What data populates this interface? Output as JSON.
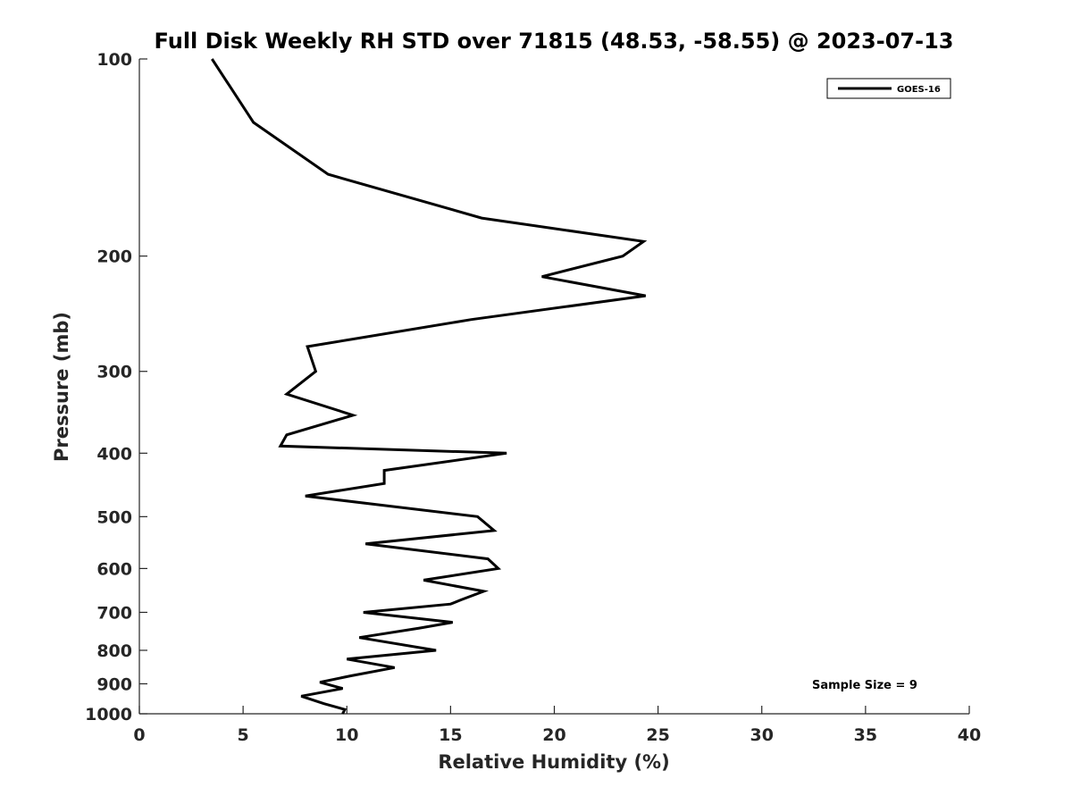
{
  "chart_data": {
    "type": "line",
    "title": "Full Disk Weekly RH STD over 71815 (48.53, -58.55) @ 2023-07-13",
    "xlabel": "Relative Humidity (%)",
    "ylabel": "Pressure (mb)",
    "xlim": [
      0,
      40
    ],
    "ylim": [
      100,
      1000
    ],
    "y_scale": "log",
    "y_reversed": true,
    "x_ticks": [
      0,
      5,
      10,
      15,
      20,
      25,
      30,
      35,
      40
    ],
    "y_ticks": [
      100,
      200,
      300,
      400,
      500,
      600,
      700,
      800,
      900,
      1000
    ],
    "grid": false,
    "legend_position": "top-right",
    "series": [
      {
        "name": "GOES-16",
        "color": "#000000",
        "points": [
          [
            3.5,
            100
          ],
          [
            5.5,
            125
          ],
          [
            9.1,
            150
          ],
          [
            16.5,
            175
          ],
          [
            24.3,
            190
          ],
          [
            23.3,
            200
          ],
          [
            19.4,
            215
          ],
          [
            24.4,
            230
          ],
          [
            16.0,
            250
          ],
          [
            8.1,
            275
          ],
          [
            8.5,
            300
          ],
          [
            7.1,
            325
          ],
          [
            10.3,
            350
          ],
          [
            7.1,
            375
          ],
          [
            6.8,
            390
          ],
          [
            17.7,
            400
          ],
          [
            11.8,
            425
          ],
          [
            11.8,
            445
          ],
          [
            8.0,
            465
          ],
          [
            11.6,
            480
          ],
          [
            16.3,
            500
          ],
          [
            17.1,
            525
          ],
          [
            10.9,
            550
          ],
          [
            16.8,
            580
          ],
          [
            17.3,
            600
          ],
          [
            13.7,
            625
          ],
          [
            16.6,
            650
          ],
          [
            15.5,
            670
          ],
          [
            15.0,
            680
          ],
          [
            10.8,
            700
          ],
          [
            15.1,
            725
          ],
          [
            13.5,
            740
          ],
          [
            10.6,
            765
          ],
          [
            14.3,
            800
          ],
          [
            10.0,
            825
          ],
          [
            12.3,
            850
          ],
          [
            10.2,
            875
          ],
          [
            8.7,
            895
          ],
          [
            9.8,
            915
          ],
          [
            7.8,
            940
          ],
          [
            8.9,
            965
          ],
          [
            9.9,
            985
          ],
          [
            9.8,
            1000
          ]
        ]
      }
    ],
    "annotations": [
      "Sample Size = 9"
    ]
  }
}
